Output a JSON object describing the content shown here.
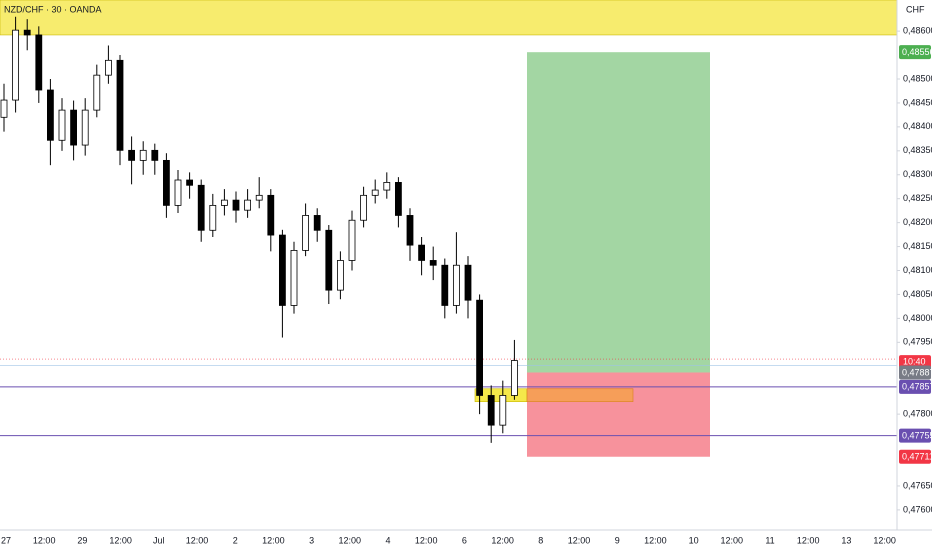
{
  "chart_data": {
    "type": "candlestick",
    "title": "NZD/CHF · 30 · OANDA",
    "currency": "CHF",
    "x_labels": [
      "27",
      "12:00",
      "29",
      "12:00",
      "Jul",
      "12:00",
      "2",
      "12:00",
      "3",
      "12:00",
      "4",
      "12:00",
      "6",
      "12:00",
      "8",
      "12:00",
      "9",
      "12:00",
      "10",
      "12:00",
      "11",
      "12:00",
      "13",
      "12:00"
    ],
    "open": [
      0.4842,
      0.48456,
      0.48602,
      0.48592,
      0.48477,
      0.48372,
      0.48435,
      0.48362,
      0.48435,
      0.48508,
      0.48539,
      0.48351,
      0.4833,
      0.48351,
      0.4833,
      0.48236,
      0.48289,
      0.48278,
      0.48184,
      0.48236,
      0.48247,
      0.48226,
      0.48247,
      0.48257,
      0.48174,
      0.48027,
      0.48142,
      0.48215,
      0.48184,
      0.48059,
      0.48121,
      0.48205,
      0.48257,
      0.48268,
      0.48284,
      0.48215,
      0.48153,
      0.48121,
      0.48111,
      0.48027,
      0.48111,
      0.48038,
      0.47839,
      0.47777,
      0.47839
    ],
    "high": [
      0.4849,
      0.4863,
      0.48625,
      0.4861,
      0.485,
      0.4846,
      0.48455,
      0.4846,
      0.4853,
      0.4857,
      0.4855,
      0.4838,
      0.4837,
      0.48365,
      0.48345,
      0.4831,
      0.48305,
      0.4829,
      0.4826,
      0.4827,
      0.48265,
      0.4827,
      0.48295,
      0.4827,
      0.48185,
      0.4816,
      0.4824,
      0.4823,
      0.48195,
      0.4814,
      0.48225,
      0.48275,
      0.4829,
      0.48305,
      0.48295,
      0.4823,
      0.4817,
      0.4815,
      0.48125,
      0.4818,
      0.4813,
      0.4805,
      0.4786,
      0.4787,
      0.47955
    ],
    "low": [
      0.4839,
      0.4843,
      0.4856,
      0.4845,
      0.4832,
      0.4835,
      0.4833,
      0.4834,
      0.4842,
      0.4849,
      0.4832,
      0.4828,
      0.483,
      0.483,
      0.4821,
      0.4822,
      0.4825,
      0.4816,
      0.4817,
      0.48215,
      0.482,
      0.4821,
      0.4823,
      0.4814,
      0.4796,
      0.4801,
      0.4813,
      0.4816,
      0.4803,
      0.4804,
      0.481,
      0.4819,
      0.4824,
      0.4825,
      0.4819,
      0.4812,
      0.4809,
      0.4808,
      0.48,
      0.4801,
      0.48,
      0.478,
      0.4774,
      0.4776,
      0.4783
    ],
    "close": [
      0.48456,
      0.48602,
      0.48592,
      0.48477,
      0.48372,
      0.48435,
      0.48362,
      0.48435,
      0.48508,
      0.48539,
      0.48351,
      0.4833,
      0.48351,
      0.4833,
      0.48236,
      0.48289,
      0.48278,
      0.48184,
      0.48236,
      0.48247,
      0.48226,
      0.48247,
      0.48257,
      0.48174,
      0.48027,
      0.48142,
      0.48215,
      0.48184,
      0.48059,
      0.48121,
      0.48205,
      0.48257,
      0.48268,
      0.48284,
      0.48215,
      0.48153,
      0.48121,
      0.48111,
      0.48027,
      0.48111,
      0.48038,
      0.47839,
      0.47777,
      0.47839,
      0.47912
    ],
    "up_color": "#ffffff",
    "down_color": "#000000",
    "ylim": [
      0.47558,
      0.48665
    ],
    "yticks": [
      {
        "value": 0.486,
        "label": "0,48600"
      },
      {
        "value": 0.485,
        "label": "0,48500"
      },
      {
        "value": 0.4845,
        "label": "0,48450"
      },
      {
        "value": 0.484,
        "label": "0,48400"
      },
      {
        "value": 0.4835,
        "label": "0,48350"
      },
      {
        "value": 0.483,
        "label": "0,48300"
      },
      {
        "value": 0.4825,
        "label": "0,48250"
      },
      {
        "value": 0.482,
        "label": "0,48200"
      },
      {
        "value": 0.4815,
        "label": "0,48150"
      },
      {
        "value": 0.481,
        "label": "0,48100"
      },
      {
        "value": 0.4805,
        "label": "0,48050"
      },
      {
        "value": 0.48,
        "label": "0,48000"
      },
      {
        "value": 0.4795,
        "label": "0,47950"
      },
      {
        "value": 0.478,
        "label": "0,47800"
      },
      {
        "value": 0.4765,
        "label": "0,47650"
      },
      {
        "value": 0.476,
        "label": "0,47600"
      }
    ],
    "supply_zone": {
      "low": 0.48592,
      "high": 0.48665,
      "color": "#f7ec6e"
    },
    "demand_zone": {
      "low": 0.47826,
      "high": 0.47853,
      "color": "#f5e94a",
      "extension_color": "#f6a04d"
    },
    "position": {
      "entry": {
        "value": 0.47887,
        "label": "0,47887"
      },
      "target": {
        "value": 0.48556,
        "label": "0,48556"
      },
      "stop": {
        "value": 0.47711,
        "label": "0,47711"
      },
      "profit_color": "#a3d6a3",
      "loss_color": "#f7929c"
    },
    "levels": [
      {
        "value": 0.47857,
        "label": "0,47857"
      },
      {
        "value": 0.47755,
        "label": "0,47755"
      }
    ],
    "level_color": "#6a4fb0",
    "last_price_line": 0.47915,
    "countdown": "10:40"
  }
}
